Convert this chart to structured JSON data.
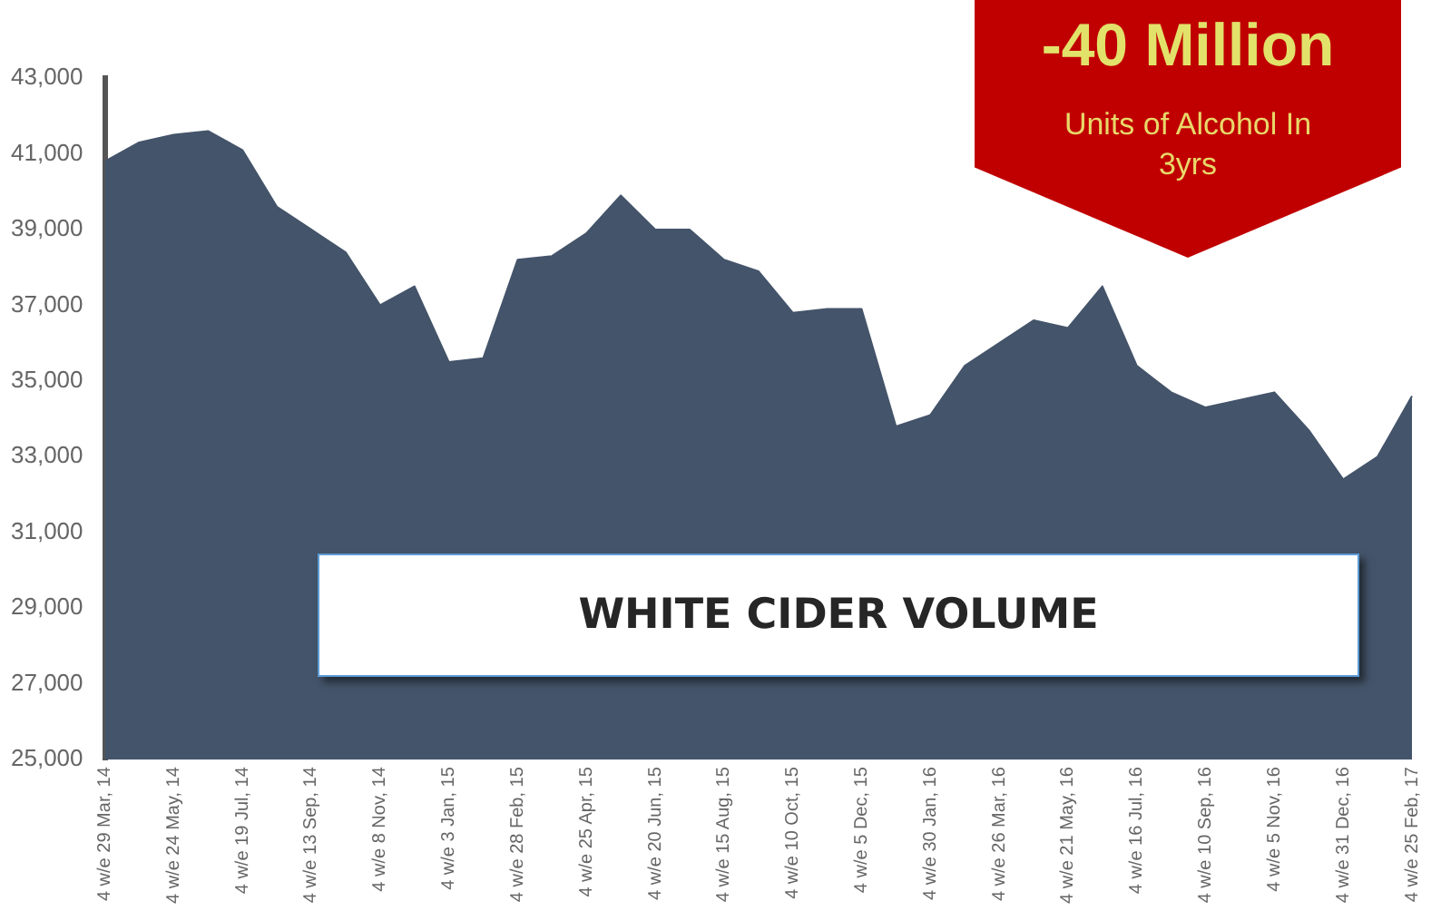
{
  "chart_data": {
    "type": "area",
    "categories": [
      "4 w/e 29 Mar, 14",
      null,
      "4 w/e 24 May, 14",
      null,
      "4 w/e 19 Jul, 14",
      null,
      "4 w/e 13 Sep, 14",
      null,
      "4 w/e 8 Nov, 14",
      null,
      "4 w/e 3 Jan, 15",
      null,
      "4 w/e 28 Feb, 15",
      null,
      "4 w/e 25 Apr, 15",
      null,
      "4 w/e 20 Jun, 15",
      null,
      "4 w/e 15 Aug, 15",
      null,
      "4 w/e 10 Oct, 15",
      null,
      "4 w/e 5 Dec, 15",
      null,
      "4 w/e 30 Jan, 16",
      null,
      "4 w/e 26 Mar, 16",
      null,
      "4 w/e 21 May, 16",
      null,
      "4 w/e 16 Jul, 16",
      null,
      "4 w/e 10 Sep, 16",
      null,
      "4 w/e 5 Nov, 16",
      null,
      "4 w/e 31 Dec, 16",
      null,
      "4 w/e 25 Feb, 17"
    ],
    "series": [
      {
        "color": "#44546a",
        "values": [
          40800,
          41300,
          41500,
          41600,
          41100,
          39600,
          39000,
          38400,
          37000,
          37500,
          35500,
          35600,
          38200,
          38300,
          38900,
          39900,
          39000,
          39000,
          38200,
          37900,
          36800,
          36900,
          36900,
          33800,
          34100,
          35400,
          36000,
          36600,
          36400,
          37500,
          35400,
          34700,
          34300,
          34500,
          34700,
          33700,
          32400,
          33000,
          34600
        ]
      }
    ],
    "ylim": [
      25000,
      43000
    ],
    "yticks": [
      {
        "value": 25000,
        "label": "25,000"
      },
      {
        "value": 27000,
        "label": "27,000"
      },
      {
        "value": 29000,
        "label": "29,000"
      },
      {
        "value": 31000,
        "label": "31,000"
      },
      {
        "value": 33000,
        "label": "33,000"
      },
      {
        "value": 35000,
        "label": "35,000"
      },
      {
        "value": 37000,
        "label": "37,000"
      },
      {
        "value": 39000,
        "label": "39,000"
      },
      {
        "value": 41000,
        "label": "41,000"
      },
      {
        "value": 43000,
        "label": "43,000"
      }
    ],
    "grid": false,
    "legend": false,
    "annotations": [
      "-40 Million",
      "Units of Alcohol In 3yrs",
      "WHITE CIDER VOLUME"
    ]
  }
}
